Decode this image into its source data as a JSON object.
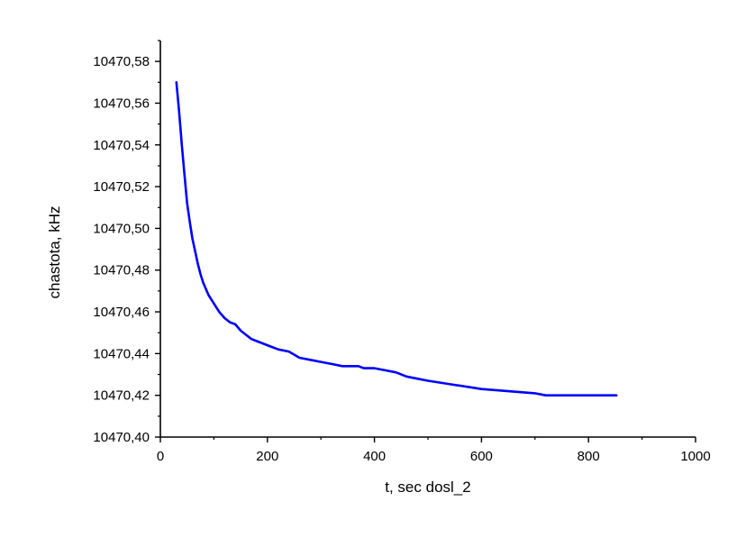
{
  "chart_data": {
    "type": "line",
    "title": "",
    "xlabel": "t, sec  dosl_2",
    "ylabel": "chastota, kHz",
    "xlim": [
      0,
      1000
    ],
    "ylim": [
      10470.4,
      10470.59
    ],
    "xticks": [
      0,
      200,
      400,
      600,
      800,
      1000
    ],
    "xtick_labels": [
      "0",
      "200",
      "400",
      "600",
      "800",
      "1000"
    ],
    "yticks": [
      10470.4,
      10470.42,
      10470.44,
      10470.46,
      10470.48,
      10470.5,
      10470.52,
      10470.54,
      10470.56,
      10470.58
    ],
    "ytick_labels": [
      "10470,40",
      "10470,42",
      "10470,44",
      "10470,46",
      "10470,48",
      "10470,50",
      "10470,52",
      "10470,54",
      "10470,56",
      "10470,58"
    ],
    "grid": false,
    "legend": "none",
    "series_color": "#0000ff",
    "series": [
      {
        "x": [
          30,
          35,
          40,
          45,
          50,
          55,
          60,
          65,
          70,
          75,
          80,
          90,
          100,
          110,
          120,
          130,
          140,
          150,
          160,
          170,
          180,
          200,
          220,
          240,
          260,
          280,
          300,
          320,
          340,
          360,
          370,
          380,
          400,
          420,
          440,
          460,
          480,
          500,
          550,
          600,
          650,
          700,
          720,
          760,
          800,
          852
        ],
        "y": [
          10470.57,
          10470.556,
          10470.54,
          10470.526,
          10470.512,
          10470.503,
          10470.495,
          10470.489,
          10470.483,
          10470.478,
          10470.474,
          10470.468,
          10470.464,
          10470.46,
          10470.457,
          10470.455,
          10470.454,
          10470.451,
          10470.449,
          10470.447,
          10470.446,
          10470.444,
          10470.442,
          10470.441,
          10470.438,
          10470.437,
          10470.436,
          10470.435,
          10470.434,
          10470.434,
          10470.434,
          10470.433,
          10470.433,
          10470.432,
          10470.431,
          10470.429,
          10470.428,
          10470.427,
          10470.425,
          10470.423,
          10470.422,
          10470.421,
          10470.42,
          10470.42,
          10470.42,
          10470.42
        ]
      }
    ]
  }
}
